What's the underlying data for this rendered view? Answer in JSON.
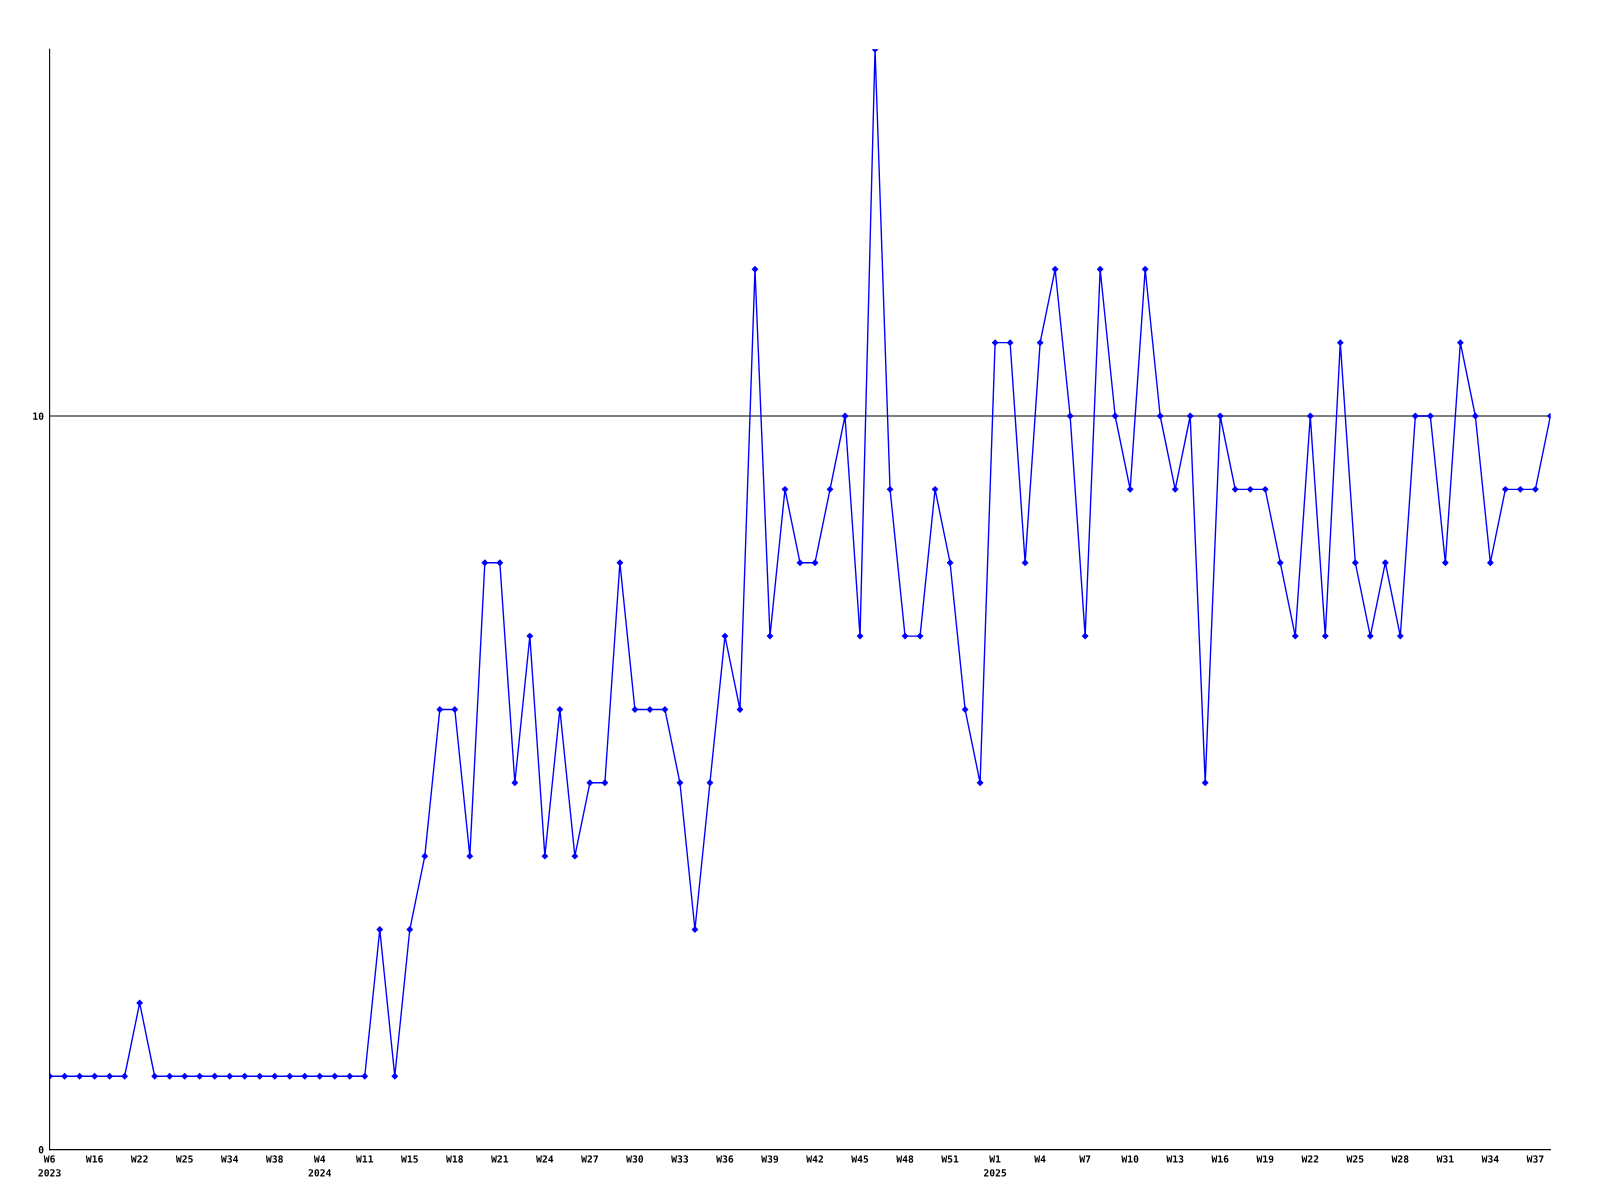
{
  "chart_data": {
    "type": "line",
    "categories": [
      "W6\n2023",
      null,
      null,
      "W16",
      null,
      null,
      "W22",
      null,
      null,
      "W25",
      null,
      null,
      "W34",
      null,
      null,
      "W38",
      null,
      null,
      "W4\n2024",
      null,
      null,
      "W11",
      null,
      null,
      "W15",
      null,
      null,
      "W18",
      null,
      null,
      "W21",
      null,
      null,
      "W24",
      null,
      null,
      "W27",
      null,
      null,
      "W30",
      null,
      null,
      "W33",
      null,
      null,
      "W36",
      null,
      null,
      "W39",
      null,
      null,
      "W42",
      null,
      null,
      "W45",
      null,
      null,
      "W48",
      null,
      null,
      "W51",
      null,
      null,
      "W1\n2025",
      null,
      null,
      "W4",
      null,
      null,
      "W7",
      null,
      null,
      "W10",
      null,
      null,
      "W13",
      null,
      null,
      "W16",
      null,
      null,
      "W19",
      null,
      null,
      "W22",
      null,
      null,
      "W25",
      null,
      null,
      "W28",
      null,
      null,
      "W31",
      null,
      null,
      "W34",
      null,
      null,
      "W37",
      null
    ],
    "series": [
      {
        "color": "#0000ff",
        "values": [
          1,
          1,
          1,
          1,
          1,
          1,
          2,
          1,
          1,
          1,
          1,
          1,
          1,
          1,
          1,
          1,
          1,
          1,
          1,
          1,
          1,
          1,
          3,
          1,
          3,
          4,
          6,
          6,
          4,
          8,
          8,
          5,
          7,
          4,
          6,
          4,
          5,
          5,
          8,
          6,
          6,
          6,
          5,
          3,
          5,
          7,
          6,
          12,
          7,
          9,
          8,
          8,
          9,
          10,
          7,
          15,
          9,
          7,
          7,
          9,
          8,
          6,
          5,
          11,
          11,
          8,
          11,
          12,
          10,
          7,
          12,
          10,
          9,
          12,
          10,
          9,
          10,
          5,
          10,
          9,
          9,
          9,
          8,
          7,
          10,
          7,
          11,
          8,
          7,
          8,
          7,
          10,
          10,
          8,
          11,
          10,
          8,
          9,
          9,
          9,
          10
        ]
      }
    ],
    "ylim": [
      0,
      15
    ],
    "yticks": [
      0,
      10
    ],
    "grid": "y",
    "marker": "diamond",
    "line_style": "solid",
    "legend": false
  }
}
